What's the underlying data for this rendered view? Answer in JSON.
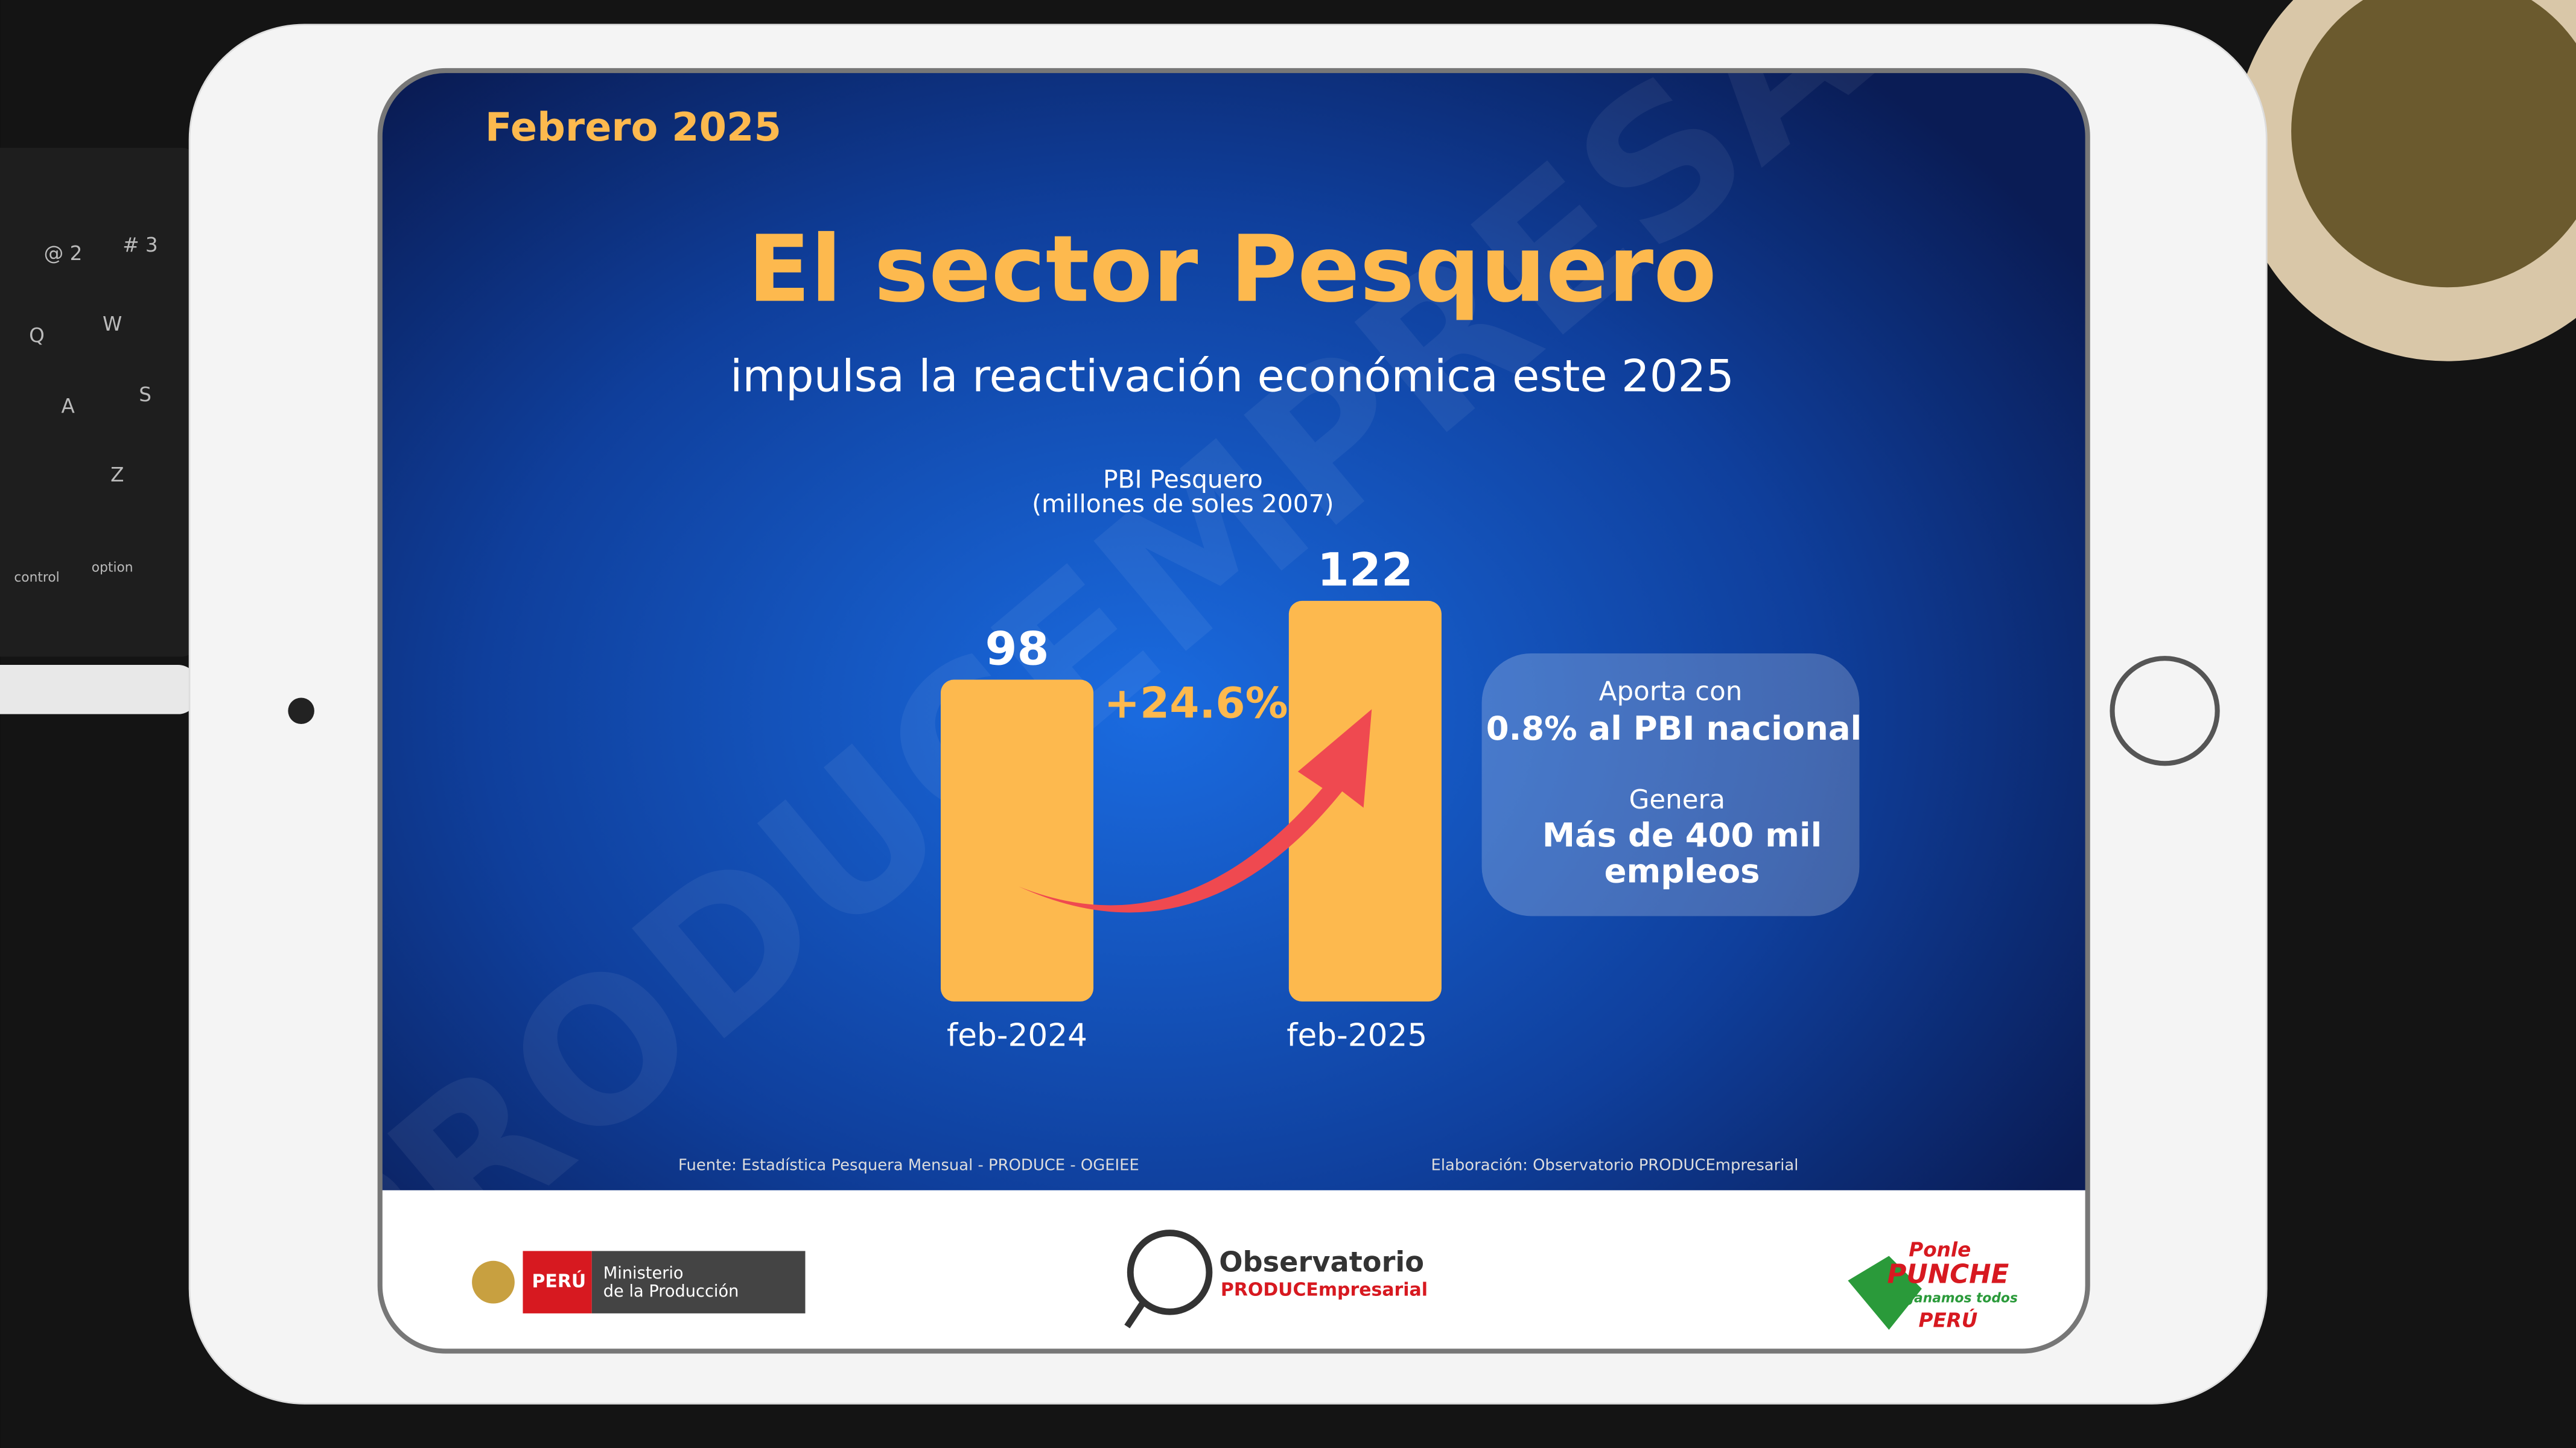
{
  "date_label": "Febrero 2025",
  "watermark": "PRODUCEMPRESARIO",
  "keyboard": [
    "@ 2",
    "# 3",
    "Q",
    "W",
    "A",
    "S",
    "Z",
    "control",
    "option"
  ],
  "chart_data": {
    "type": "bar",
    "title": "El sector Pesquero",
    "subtitle": "impulsa la reactivación económica este 2025",
    "axis_title": [
      "PBI Pesquero",
      "(millones de soles 2007)"
    ],
    "categories": [
      "feb-2024",
      "feb-2025"
    ],
    "values": [
      98,
      122
    ],
    "color": "#fdb94e",
    "ylim": [
      0,
      125
    ],
    "annotation": "+24.6%"
  },
  "info_box": {
    "lines": [
      "Aporta con",
      "0.8% al PBI nacional",
      "Genera",
      "Más de 400 mil",
      "empleos"
    ]
  },
  "footer": {
    "source": "Fuente: Estadística Pesquera Mensual - PRODUCE - OGEIEE",
    "credit": "Elaboración: Observatorio PRODUCEmpresarial"
  },
  "logos": {
    "peru": "PERÚ",
    "ministry": [
      "Ministerio",
      "de la Producción"
    ],
    "observatorio": [
      "Observatorio",
      "PRODUCEmpresarial"
    ],
    "punche": [
      "Ponle",
      "PUNCHE",
      "y ganamos todos",
      "PERÚ"
    ]
  }
}
